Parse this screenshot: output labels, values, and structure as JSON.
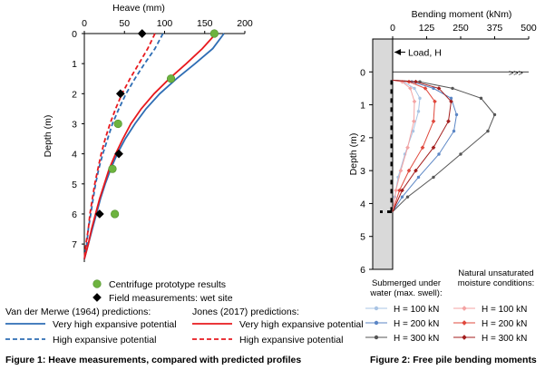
{
  "chart_data": [
    {
      "type": "line",
      "orientation": "depth-profile",
      "x_axis": {
        "label": "Heave (mm)",
        "ticks": [
          0,
          50,
          100,
          150,
          200
        ],
        "range": [
          0,
          200
        ],
        "position": "top"
      },
      "y_axis": {
        "label": "Depth (m)",
        "ticks": [
          0,
          1,
          2,
          3,
          4,
          5,
          6,
          7
        ],
        "range": [
          0,
          7.6
        ],
        "inverted": true
      },
      "grid": false,
      "series": [
        {
          "name": "Centrifuge prototype results",
          "kind": "points",
          "marker": "circle",
          "color": "#6db33f",
          "points": [
            [
              162,
              0.0
            ],
            [
              108,
              1.5
            ],
            [
              42,
              3.0
            ],
            [
              35,
              4.5
            ],
            [
              38,
              6.0
            ]
          ]
        },
        {
          "name": "Field measurements: wet site",
          "kind": "points",
          "marker": "diamond",
          "color": "#000000",
          "points": [
            [
              72,
              0.0
            ],
            [
              45,
              2.0
            ],
            [
              43,
              4.0
            ],
            [
              19,
              6.0
            ]
          ]
        },
        {
          "name": "Very high expansive potential",
          "group": "van_der_merwe",
          "kind": "line",
          "style": "solid",
          "color": "#2e6db4",
          "points": [
            [
              174,
              0.0
            ],
            [
              160,
              0.5
            ],
            [
              138,
              1.0
            ],
            [
              115,
              1.5
            ],
            [
              94,
              2.0
            ],
            [
              77,
              2.5
            ],
            [
              63,
              3.0
            ],
            [
              51,
              3.5
            ],
            [
              41,
              4.0
            ],
            [
              33,
              4.5
            ],
            [
              26,
              5.0
            ],
            [
              20,
              5.5
            ],
            [
              15,
              6.0
            ],
            [
              10,
              6.5
            ],
            [
              5,
              7.0
            ],
            [
              0,
              7.5
            ]
          ]
        },
        {
          "name": "High expansive potential",
          "group": "van_der_merwe",
          "kind": "line",
          "style": "dashed",
          "color": "#2e6db4",
          "points": [
            [
              98,
              0.0
            ],
            [
              88,
              0.5
            ],
            [
              75,
              1.0
            ],
            [
              63,
              1.5
            ],
            [
              52,
              2.0
            ],
            [
              43,
              2.5
            ],
            [
              35,
              3.0
            ],
            [
              29,
              3.5
            ],
            [
              23,
              4.0
            ],
            [
              18,
              4.5
            ],
            [
              14,
              5.0
            ],
            [
              11,
              5.5
            ],
            [
              8,
              6.0
            ],
            [
              5,
              6.5
            ],
            [
              3,
              7.0
            ],
            [
              0,
              7.5
            ]
          ]
        },
        {
          "name": "Very high expansive potential",
          "group": "jones",
          "kind": "line",
          "style": "solid",
          "color": "#e8191e",
          "points": [
            [
              164,
              0.0
            ],
            [
              147,
              0.5
            ],
            [
              127,
              1.0
            ],
            [
              106,
              1.5
            ],
            [
              87,
              2.0
            ],
            [
              71,
              2.5
            ],
            [
              58,
              3.0
            ],
            [
              48,
              3.5
            ],
            [
              39,
              4.0
            ],
            [
              31,
              4.5
            ],
            [
              25,
              5.0
            ],
            [
              19,
              5.5
            ],
            [
              14,
              6.0
            ],
            [
              9,
              6.5
            ],
            [
              5,
              7.0
            ],
            [
              0,
              7.5
            ]
          ]
        },
        {
          "name": "High expansive potential",
          "group": "jones",
          "kind": "line",
          "style": "dashed",
          "color": "#e8191e",
          "points": [
            [
              88,
              0.0
            ],
            [
              79,
              0.5
            ],
            [
              68,
              1.0
            ],
            [
              57,
              1.5
            ],
            [
              47,
              2.0
            ],
            [
              39,
              2.5
            ],
            [
              32,
              3.0
            ],
            [
              26,
              3.5
            ],
            [
              21,
              4.0
            ],
            [
              17,
              4.5
            ],
            [
              13,
              5.0
            ],
            [
              10,
              5.5
            ],
            [
              7,
              6.0
            ],
            [
              5,
              6.5
            ],
            [
              2,
              7.0
            ],
            [
              0,
              7.5
            ]
          ]
        }
      ],
      "legend": {
        "items": [
          "Centrifuge prototype results",
          "Field measurements: wet site"
        ],
        "group_titles": {
          "van_der_merwe": "Van der Merwe (1964) predictions:",
          "jones": "Jones (2017) predictions:"
        }
      },
      "caption": "Figure 1: Heave measurements, compared with predicted profiles"
    },
    {
      "type": "line",
      "orientation": "depth-profile",
      "x_axis": {
        "label": "Bending moment (kNm)",
        "ticks": [
          0,
          125,
          250,
          375,
          500
        ],
        "range": [
          0,
          500
        ],
        "position": "top"
      },
      "y_axis": {
        "label": "Depth (m)",
        "ticks": [
          0,
          1,
          2,
          3,
          4,
          5,
          6
        ],
        "range": [
          -1,
          6
        ],
        "inverted": true
      },
      "grid": false,
      "annotations": [
        "Load, H"
      ],
      "series": [
        {
          "name": "H = 100 kN",
          "group": "submerged",
          "color": "#a9c4e4",
          "points": [
            [
              0,
              0.25
            ],
            [
              40,
              0.3
            ],
            [
              80,
              0.5
            ],
            [
              100,
              0.8
            ],
            [
              95,
              1.2
            ],
            [
              75,
              1.8
            ],
            [
              45,
              2.5
            ],
            [
              20,
              3.2
            ],
            [
              8,
              3.8
            ],
            [
              0,
              4.25
            ]
          ]
        },
        {
          "name": "H = 200 kN",
          "group": "submerged",
          "color": "#5b86c5",
          "points": [
            [
              0,
              0.25
            ],
            [
              70,
              0.3
            ],
            [
              150,
              0.5
            ],
            [
              215,
              0.8
            ],
            [
              235,
              1.3
            ],
            [
              225,
              1.8
            ],
            [
              170,
              2.5
            ],
            [
              95,
              3.2
            ],
            [
              35,
              3.8
            ],
            [
              0,
              4.25
            ]
          ]
        },
        {
          "name": "H = 300 kN",
          "group": "submerged",
          "color": "#555555",
          "points": [
            [
              0,
              0.25
            ],
            [
              100,
              0.3
            ],
            [
              220,
              0.5
            ],
            [
              325,
              0.8
            ],
            [
              375,
              1.3
            ],
            [
              350,
              1.8
            ],
            [
              250,
              2.5
            ],
            [
              150,
              3.2
            ],
            [
              55,
              3.8
            ],
            [
              0,
              4.25
            ]
          ]
        },
        {
          "name": "H = 100 kN",
          "group": "natural",
          "color": "#f4a3a3",
          "points": [
            [
              0,
              0.25
            ],
            [
              35,
              0.3
            ],
            [
              65,
              0.5
            ],
            [
              80,
              0.9
            ],
            [
              78,
              1.5
            ],
            [
              55,
              2.3
            ],
            [
              30,
              3.0
            ],
            [
              12,
              3.6
            ],
            [
              0,
              4.25
            ]
          ]
        },
        {
          "name": "H = 200 kN",
          "group": "natural",
          "color": "#e0483c",
          "points": [
            [
              0,
              0.25
            ],
            [
              60,
              0.3
            ],
            [
              120,
              0.5
            ],
            [
              155,
              0.9
            ],
            [
              150,
              1.5
            ],
            [
              110,
              2.3
            ],
            [
              60,
              3.0
            ],
            [
              25,
              3.6
            ],
            [
              0,
              4.25
            ]
          ]
        },
        {
          "name": "H = 300 kN",
          "group": "natural",
          "color": "#a31e1e",
          "points": [
            [
              0,
              0.25
            ],
            [
              85,
              0.3
            ],
            [
              170,
              0.5
            ],
            [
              215,
              0.9
            ],
            [
              205,
              1.5
            ],
            [
              150,
              2.3
            ],
            [
              85,
              3.0
            ],
            [
              35,
              3.6
            ],
            [
              0,
              4.25
            ]
          ]
        }
      ],
      "legend": {
        "group_titles": {
          "submerged": "Submerged under water (max. swell):",
          "natural": "Natural unsaturated moisture conditions:"
        }
      },
      "caption": "Figure 2: Free pile bending moments"
    }
  ]
}
